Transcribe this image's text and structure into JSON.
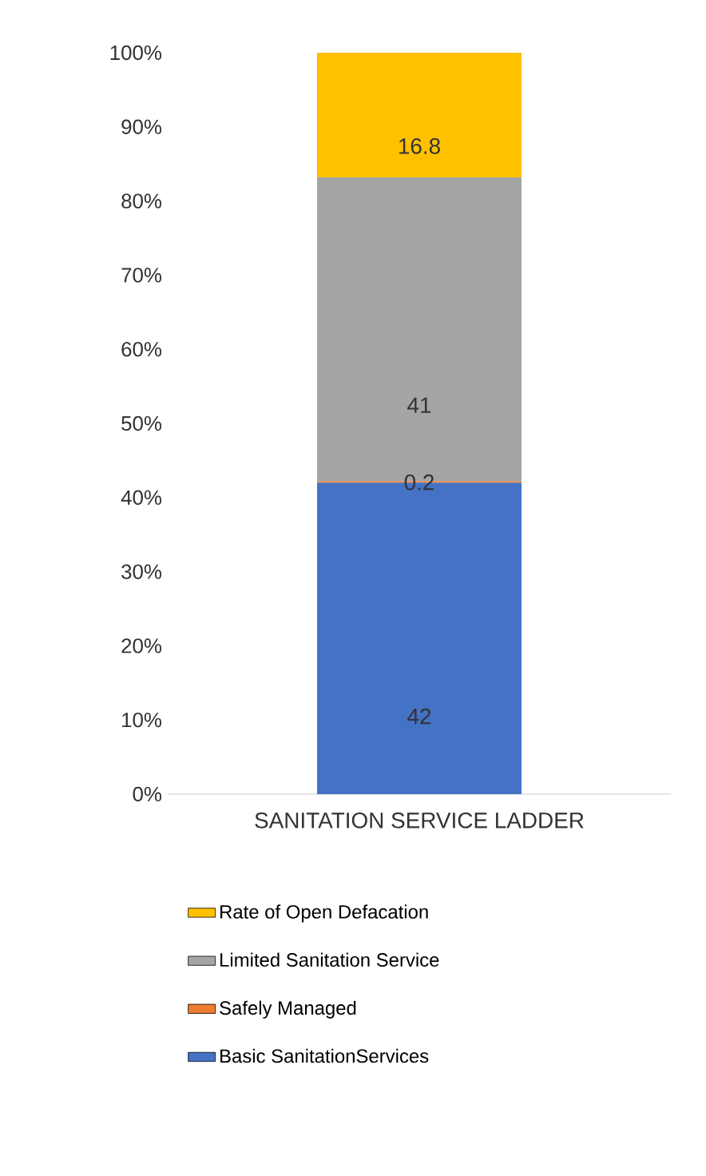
{
  "chart_data": {
    "type": "bar",
    "stacked": true,
    "categories": [
      "SANITATION SERVICE LADDER"
    ],
    "series": [
      {
        "name": "Basic SanitationServices",
        "color": "#4472c4",
        "values": [
          42
        ]
      },
      {
        "name": "Safely Managed",
        "color": "#ed7d31",
        "values": [
          0.2
        ]
      },
      {
        "name": "Limited Sanitation Service",
        "color": "#a5a5a5",
        "values": [
          41
        ]
      },
      {
        "name": "Rate of Open Defacation",
        "color": "#ffc000",
        "values": [
          16.8
        ]
      }
    ],
    "ylim": [
      0,
      100
    ],
    "yticks": [
      {
        "value": 0,
        "label": "0%"
      },
      {
        "value": 10,
        "label": "10%"
      },
      {
        "value": 20,
        "label": "20%"
      },
      {
        "value": 30,
        "label": "30%"
      },
      {
        "value": 40,
        "label": "40%"
      },
      {
        "value": 50,
        "label": "50%"
      },
      {
        "value": 60,
        "label": "60%"
      },
      {
        "value": 70,
        "label": "70%"
      },
      {
        "value": 80,
        "label": "80%"
      },
      {
        "value": 90,
        "label": "90%"
      },
      {
        "value": 100,
        "label": "100%"
      }
    ],
    "data_labels": true,
    "legend": "bottom",
    "grid": false
  }
}
